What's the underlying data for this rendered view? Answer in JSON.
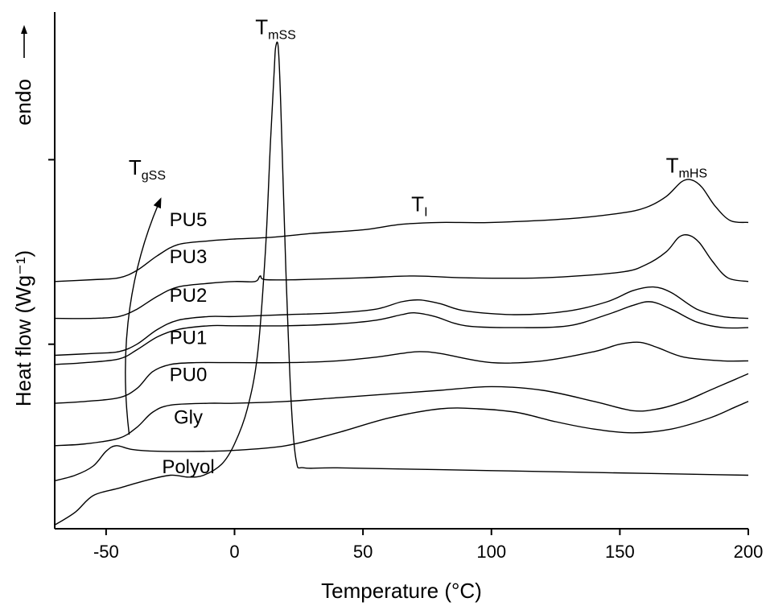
{
  "chart_data": {
    "type": "line",
    "xlabel": "Temperature (°C)",
    "ylabel": "Heat flow (Wg⁻¹)",
    "endo_label": "endo",
    "xlim": [
      -70,
      200
    ],
    "ylim": [
      0,
      28
    ],
    "x_ticks": [
      -50,
      0,
      50,
      100,
      150,
      200
    ],
    "y_ticks": [
      10,
      20
    ],
    "y_tick_labels_shown": false,
    "grid": false,
    "annotations": [
      {
        "main": "T",
        "sub": "mSS",
        "x": 16,
        "y": 26.8
      },
      {
        "main": "T",
        "sub": "gSS",
        "x": -34,
        "y": 19.2
      },
      {
        "main": "T",
        "sub": "I",
        "x": 72,
        "y": 17.2
      },
      {
        "main": "T",
        "sub": "mHS",
        "x": 176,
        "y": 19.3
      }
    ],
    "series": [
      {
        "name": "PU5",
        "label_at": [
          -18,
          16.4
        ],
        "points": [
          [
            -70,
            13.4
          ],
          [
            -55,
            13.5
          ],
          [
            -45,
            13.6
          ],
          [
            -38,
            14.0
          ],
          [
            -30,
            14.8
          ],
          [
            -22,
            15.4
          ],
          [
            -10,
            15.6
          ],
          [
            0,
            15.7
          ],
          [
            15,
            15.8
          ],
          [
            30,
            16.0
          ],
          [
            50,
            16.2
          ],
          [
            65,
            16.5
          ],
          [
            80,
            16.6
          ],
          [
            100,
            16.6
          ],
          [
            130,
            16.8
          ],
          [
            150,
            17.1
          ],
          [
            160,
            17.4
          ],
          [
            168,
            18.0
          ],
          [
            174,
            18.8
          ],
          [
            178,
            18.9
          ],
          [
            182,
            18.5
          ],
          [
            187,
            17.5
          ],
          [
            193,
            16.7
          ],
          [
            200,
            16.6
          ]
        ]
      },
      {
        "name": "PU3",
        "label_at": [
          -18,
          14.4
        ],
        "points": [
          [
            -70,
            11.4
          ],
          [
            -55,
            11.4
          ],
          [
            -45,
            11.5
          ],
          [
            -38,
            11.9
          ],
          [
            -30,
            12.6
          ],
          [
            -22,
            13.1
          ],
          [
            -10,
            13.3
          ],
          [
            0,
            13.4
          ],
          [
            8,
            13.4
          ],
          [
            10,
            13.7
          ],
          [
            12,
            13.5
          ],
          [
            25,
            13.5
          ],
          [
            50,
            13.6
          ],
          [
            70,
            13.7
          ],
          [
            90,
            13.6
          ],
          [
            120,
            13.6
          ],
          [
            150,
            13.9
          ],
          [
            160,
            14.3
          ],
          [
            168,
            15.0
          ],
          [
            173,
            15.8
          ],
          [
            177,
            15.9
          ],
          [
            181,
            15.5
          ],
          [
            186,
            14.5
          ],
          [
            192,
            13.6
          ],
          [
            200,
            13.4
          ]
        ]
      },
      {
        "name": "PU2",
        "label_at": [
          -18,
          12.3
        ],
        "points": [
          [
            -70,
            9.4
          ],
          [
            -55,
            9.5
          ],
          [
            -45,
            9.6
          ],
          [
            -38,
            10.0
          ],
          [
            -30,
            10.8
          ],
          [
            -22,
            11.3
          ],
          [
            -10,
            11.5
          ],
          [
            0,
            11.5
          ],
          [
            20,
            11.6
          ],
          [
            40,
            11.7
          ],
          [
            55,
            11.9
          ],
          [
            65,
            12.3
          ],
          [
            72,
            12.4
          ],
          [
            80,
            12.2
          ],
          [
            90,
            11.8
          ],
          [
            110,
            11.6
          ],
          [
            130,
            11.8
          ],
          [
            145,
            12.3
          ],
          [
            155,
            12.9
          ],
          [
            163,
            13.1
          ],
          [
            170,
            12.8
          ],
          [
            180,
            11.9
          ],
          [
            190,
            11.5
          ],
          [
            200,
            11.4
          ]
        ]
      },
      {
        "name": "PU1",
        "label_at": [
          -18,
          10.0
        ],
        "points": [
          [
            -70,
            8.9
          ],
          [
            -58,
            9.0
          ],
          [
            -45,
            9.2
          ],
          [
            -38,
            9.7
          ],
          [
            -30,
            10.4
          ],
          [
            -22,
            10.8
          ],
          [
            -10,
            11.0
          ],
          [
            0,
            11.0
          ],
          [
            20,
            11.0
          ],
          [
            40,
            11.1
          ],
          [
            55,
            11.3
          ],
          [
            65,
            11.6
          ],
          [
            70,
            11.7
          ],
          [
            78,
            11.5
          ],
          [
            90,
            11.0
          ],
          [
            110,
            10.9
          ],
          [
            130,
            11.0
          ],
          [
            145,
            11.6
          ],
          [
            155,
            12.1
          ],
          [
            162,
            12.3
          ],
          [
            170,
            11.9
          ],
          [
            180,
            11.2
          ],
          [
            190,
            10.9
          ],
          [
            200,
            10.9
          ]
        ]
      },
      {
        "name": "PU0",
        "label_at": [
          -18,
          8.0
        ],
        "points": [
          [
            -70,
            6.8
          ],
          [
            -58,
            6.9
          ],
          [
            -45,
            7.1
          ],
          [
            -38,
            7.6
          ],
          [
            -32,
            8.5
          ],
          [
            -25,
            8.9
          ],
          [
            -15,
            9.0
          ],
          [
            0,
            9.0
          ],
          [
            20,
            9.0
          ],
          [
            40,
            9.1
          ],
          [
            55,
            9.3
          ],
          [
            65,
            9.5
          ],
          [
            72,
            9.6
          ],
          [
            80,
            9.5
          ],
          [
            100,
            9.0
          ],
          [
            120,
            9.1
          ],
          [
            140,
            9.6
          ],
          [
            150,
            10.0
          ],
          [
            158,
            10.1
          ],
          [
            165,
            9.8
          ],
          [
            175,
            9.3
          ],
          [
            190,
            9.1
          ],
          [
            200,
            9.1
          ]
        ]
      },
      {
        "name": "Gly",
        "label_at": [
          -18,
          5.7
        ],
        "points": [
          [
            -70,
            4.5
          ],
          [
            -58,
            4.6
          ],
          [
            -45,
            4.9
          ],
          [
            -38,
            5.5
          ],
          [
            -32,
            6.3
          ],
          [
            -25,
            6.7
          ],
          [
            -10,
            6.8
          ],
          [
            0,
            6.8
          ],
          [
            20,
            6.9
          ],
          [
            40,
            7.1
          ],
          [
            60,
            7.3
          ],
          [
            80,
            7.5
          ],
          [
            100,
            7.7
          ],
          [
            120,
            7.5
          ],
          [
            140,
            6.9
          ],
          [
            155,
            6.4
          ],
          [
            165,
            6.5
          ],
          [
            175,
            6.9
          ],
          [
            185,
            7.5
          ],
          [
            195,
            8.1
          ],
          [
            200,
            8.4
          ]
        ]
      },
      {
        "name": "Polyol",
        "label_at": [
          -18,
          3.0
        ],
        "points": [
          [
            -70,
            2.6
          ],
          [
            -62,
            2.9
          ],
          [
            -55,
            3.4
          ],
          [
            -50,
            4.2
          ],
          [
            -46,
            4.5
          ],
          [
            -40,
            4.3
          ],
          [
            -30,
            4.2
          ],
          [
            -10,
            4.2
          ],
          [
            0,
            4.25
          ],
          [
            20,
            4.5
          ],
          [
            40,
            5.2
          ],
          [
            60,
            6.0
          ],
          [
            80,
            6.5
          ],
          [
            95,
            6.5
          ],
          [
            110,
            6.3
          ],
          [
            125,
            5.8
          ],
          [
            140,
            5.4
          ],
          [
            155,
            5.2
          ],
          [
            170,
            5.4
          ],
          [
            185,
            6.0
          ],
          [
            195,
            6.6
          ],
          [
            200,
            6.9
          ]
        ]
      },
      {
        "name": "",
        "points": [
          [
            -70,
            0.2
          ],
          [
            -62,
            0.9
          ],
          [
            -55,
            1.8
          ],
          [
            -45,
            2.2
          ],
          [
            -35,
            2.6
          ],
          [
            -25,
            2.9
          ],
          [
            -18,
            2.8
          ],
          [
            -12,
            2.9
          ],
          [
            -5,
            3.5
          ],
          [
            0,
            4.6
          ],
          [
            5,
            6.5
          ],
          [
            9,
            9.5
          ],
          [
            12,
            15.0
          ],
          [
            14,
            21.0
          ],
          [
            15.5,
            25.0
          ],
          [
            16,
            26.1
          ],
          [
            17,
            26.1
          ],
          [
            18,
            23.0
          ],
          [
            20,
            14.0
          ],
          [
            22,
            7.0
          ],
          [
            24,
            3.7
          ],
          [
            27,
            3.3
          ],
          [
            40,
            3.3
          ],
          [
            80,
            3.2
          ],
          [
            120,
            3.1
          ],
          [
            160,
            3.0
          ],
          [
            200,
            2.9
          ]
        ]
      }
    ]
  }
}
